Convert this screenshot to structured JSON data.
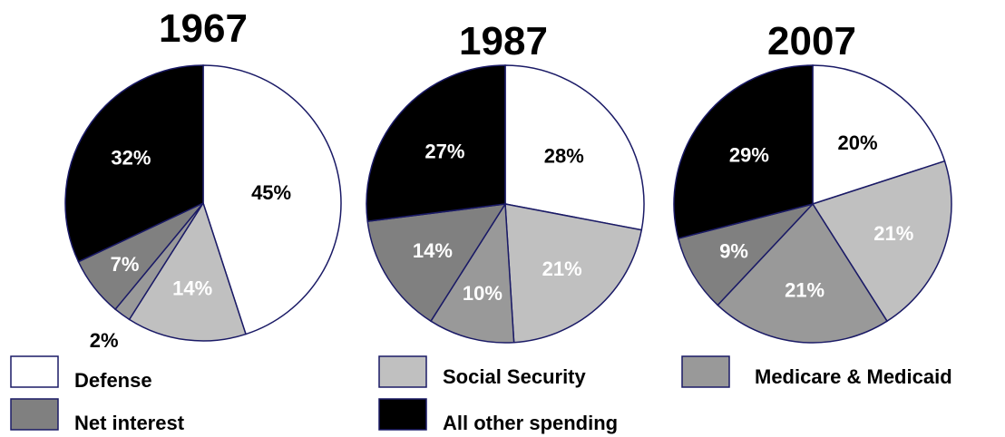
{
  "chart_data": [
    {
      "type": "pie",
      "title": "1967",
      "categories": [
        "Defense",
        "Social Security",
        "Medicare & Medicaid",
        "Net interest",
        "All other spending"
      ],
      "values": [
        45,
        14,
        2,
        7,
        32
      ],
      "labels": [
        "45%",
        "14%",
        "2%",
        "7%",
        "32%"
      ]
    },
    {
      "type": "pie",
      "title": "1987",
      "categories": [
        "Defense",
        "Social Security",
        "Medicare & Medicaid",
        "Net interest",
        "All other spending"
      ],
      "values": [
        28,
        21,
        10,
        14,
        27
      ],
      "labels": [
        "28%",
        "21%",
        "10%",
        "14%",
        "27%"
      ]
    },
    {
      "type": "pie",
      "title": "2007",
      "categories": [
        "Defense",
        "Social Security",
        "Medicare & Medicaid",
        "Net interest",
        "All other spending"
      ],
      "values": [
        20,
        21,
        21,
        9,
        29
      ],
      "labels": [
        "20%",
        "21%",
        "21%",
        "9%",
        "29%"
      ]
    }
  ],
  "legend": [
    {
      "label": "Defense",
      "color": "#ffffff"
    },
    {
      "label": "Social Security",
      "color": "#c0c0c0"
    },
    {
      "label": "Medicare & Medicaid",
      "color": "#999999"
    },
    {
      "label": "Net interest",
      "color": "#808080"
    },
    {
      "label": "All other spending",
      "color": "#000000"
    }
  ],
  "colors": {
    "Defense": "#ffffff",
    "Social Security": "#c0c0c0",
    "Medicare & Medicaid": "#999999",
    "Net interest": "#808080",
    "All other spending": "#000000"
  },
  "label_colors": {
    "Defense": "#000000",
    "Social Security": "#ffffff",
    "Medicare & Medicaid": "#ffffff",
    "Net interest": "#ffffff",
    "All other spending": "#ffffff"
  }
}
